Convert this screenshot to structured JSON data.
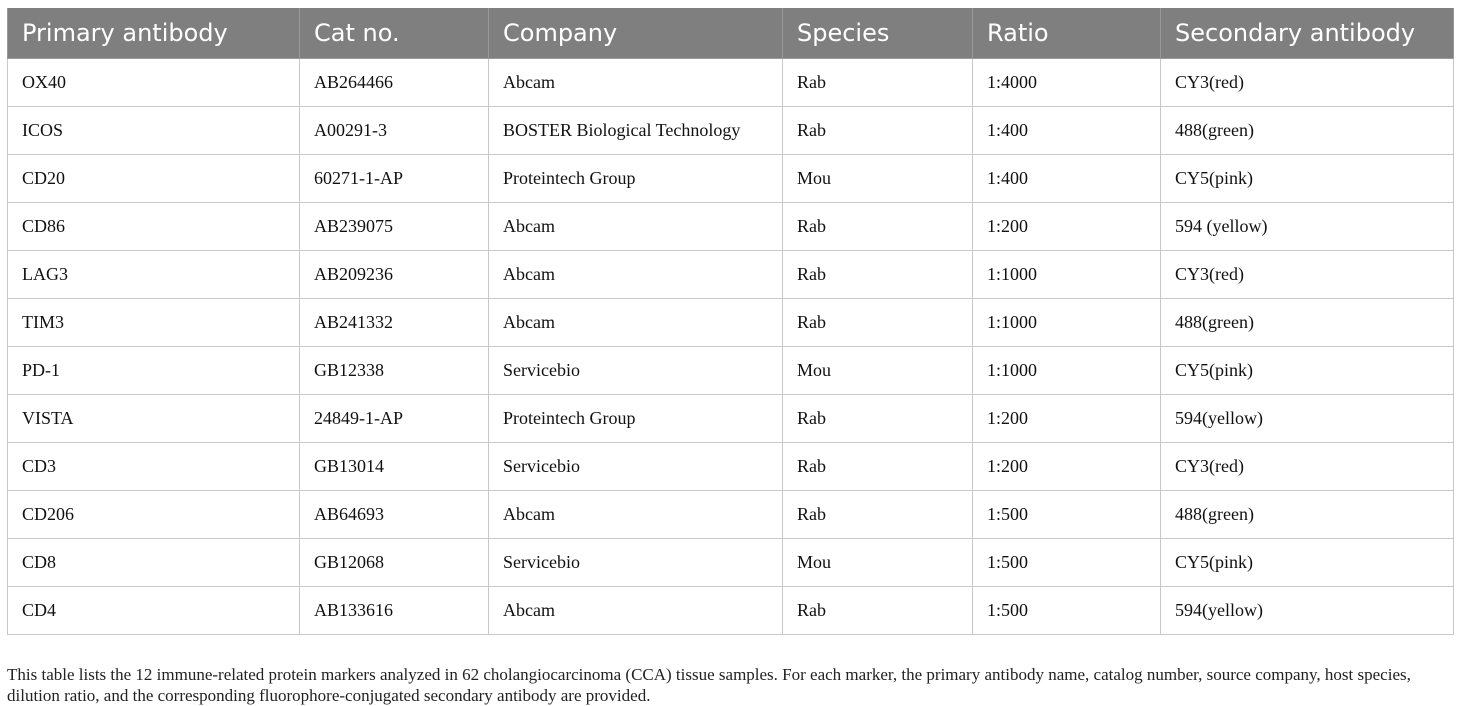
{
  "table": {
    "headers": [
      "Primary antibody",
      "Cat no.",
      "Company",
      "Species",
      "Ratio",
      "Secondary antibody"
    ],
    "rows": [
      [
        "OX40",
        "AB264466",
        "Abcam",
        "Rab",
        "1:4000",
        "CY3(red)"
      ],
      [
        "ICOS",
        "A00291-3",
        "BOSTER Biological Technology",
        "Rab",
        "1:400",
        "488(green)"
      ],
      [
        "CD20",
        "60271-1-AP",
        "Proteintech Group",
        "Mou",
        "1:400",
        "CY5(pink)"
      ],
      [
        "CD86",
        "AB239075",
        "Abcam",
        "Rab",
        "1:200",
        "594 (yellow)"
      ],
      [
        "LAG3",
        "AB209236",
        "Abcam",
        "Rab",
        "1:1000",
        "CY3(red)"
      ],
      [
        "TIM3",
        "AB241332",
        "Abcam",
        "Rab",
        "1:1000",
        "488(green)"
      ],
      [
        "PD-1",
        "GB12338",
        "Servicebio",
        "Mou",
        "1:1000",
        "CY5(pink)"
      ],
      [
        "VISTA",
        "24849-1-AP",
        "Proteintech Group",
        "Rab",
        "1:200",
        "594(yellow)"
      ],
      [
        "CD3",
        "GB13014",
        "Servicebio",
        "Rab",
        "1:200",
        "CY3(red)"
      ],
      [
        "CD206",
        "AB64693",
        "Abcam",
        "Rab",
        "1:500",
        "488(green)"
      ],
      [
        "CD8",
        "GB12068",
        "Servicebio",
        "Mou",
        "1:500",
        "CY5(pink)"
      ],
      [
        "CD4",
        "AB133616",
        "Abcam",
        "Rab",
        "1:500",
        "594(yellow)"
      ]
    ]
  },
  "caption": "This table lists the 12 immune-related protein markers analyzed in 62 cholangiocarcinoma (CCA) tissue samples. For each marker, the primary antibody name, catalog number, source company, host species, dilution ratio, and the corresponding fluorophore-conjugated secondary antibody are provided.",
  "colors": {
    "header_bg": "#7f7f7f",
    "header_text": "#ffffff",
    "grid": "#c8c8c8"
  }
}
